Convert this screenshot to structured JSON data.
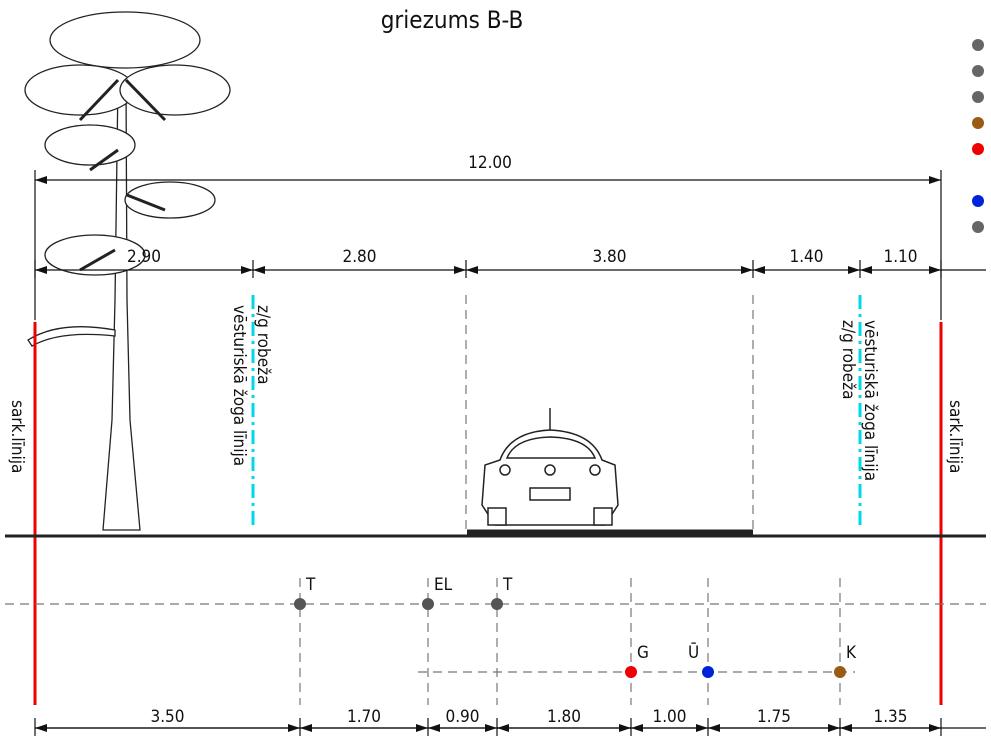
{
  "title": "griezums B-B",
  "overall_dimension": "12.00",
  "upper_dimensions": [
    "2.90",
    "2.80",
    "3.80",
    "1.40",
    "1.10"
  ],
  "lower_dimensions": [
    "3.50",
    "1.70",
    "0.90",
    "1.80",
    "1.00",
    "1.75",
    "1.35"
  ],
  "labels": {
    "red_line": "sark.līnija",
    "border": "z/g robeža",
    "fence": "vēsturiskā žoga līnija"
  },
  "utilities": [
    {
      "label": "T"
    },
    {
      "label": "EL"
    },
    {
      "label": "T"
    },
    {
      "label": "G"
    },
    {
      "label": "Ū"
    },
    {
      "label": "K"
    }
  ]
}
